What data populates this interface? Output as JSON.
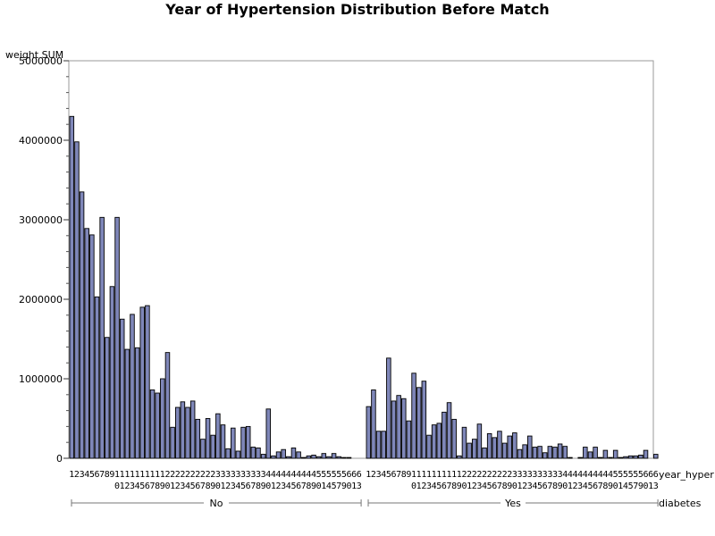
{
  "chart_data": {
    "type": "bar",
    "title": "Year of Hypertension Distribution Before Match",
    "ylabel": "weight SUM",
    "xlabel_inner": "year_hyper",
    "xlabel_outer": "diabetes",
    "ylim": [
      0,
      5000000
    ],
    "y_ticks": [
      0,
      1000000,
      2000000,
      3000000,
      4000000,
      5000000
    ],
    "bar_color": "#7F87B9",
    "frame_color": "#9A9A9A",
    "groups": [
      {
        "name": "No",
        "categories": [
          1,
          2,
          3,
          4,
          5,
          6,
          7,
          8,
          9,
          10,
          11,
          12,
          13,
          14,
          15,
          16,
          17,
          18,
          19,
          20,
          21,
          22,
          23,
          24,
          25,
          26,
          27,
          28,
          29,
          30,
          31,
          32,
          33,
          34,
          35,
          36,
          37,
          38,
          39,
          40,
          41,
          42,
          43,
          44,
          45,
          46,
          47,
          48,
          49,
          50,
          51,
          54,
          55,
          57,
          59,
          60,
          61,
          63
        ],
        "values": [
          4300000,
          3980000,
          3350000,
          2890000,
          2810000,
          2030000,
          3030000,
          1520000,
          2160000,
          3030000,
          1750000,
          1370000,
          1810000,
          1390000,
          1900000,
          1920000,
          860000,
          820000,
          1000000,
          1330000,
          390000,
          640000,
          710000,
          640000,
          720000,
          490000,
          240000,
          500000,
          290000,
          560000,
          420000,
          120000,
          380000,
          90000,
          390000,
          400000,
          140000,
          130000,
          50000,
          620000,
          30000,
          80000,
          110000,
          20000,
          130000,
          80000,
          10000,
          30000,
          40000,
          20000,
          60000,
          20000,
          60000,
          20000,
          10000,
          10000,
          0,
          0
        ]
      },
      {
        "name": "Yes",
        "categories": [
          1,
          2,
          3,
          4,
          5,
          6,
          7,
          8,
          9,
          10,
          11,
          12,
          13,
          14,
          15,
          16,
          17,
          18,
          19,
          20,
          21,
          22,
          23,
          24,
          25,
          26,
          27,
          28,
          29,
          30,
          31,
          32,
          33,
          34,
          35,
          36,
          37,
          38,
          39,
          40,
          41,
          42,
          43,
          44,
          45,
          46,
          47,
          48,
          49,
          50,
          51,
          54,
          55,
          57,
          59,
          60,
          61,
          63
        ],
        "values": [
          650000,
          860000,
          340000,
          340000,
          1260000,
          720000,
          790000,
          750000,
          470000,
          1070000,
          890000,
          970000,
          290000,
          420000,
          440000,
          580000,
          700000,
          490000,
          30000,
          390000,
          190000,
          240000,
          430000,
          130000,
          310000,
          260000,
          340000,
          190000,
          280000,
          320000,
          110000,
          170000,
          280000,
          140000,
          150000,
          70000,
          150000,
          140000,
          180000,
          150000,
          10000,
          0,
          10000,
          140000,
          80000,
          140000,
          10000,
          100000,
          10000,
          100000,
          10000,
          20000,
          30000,
          30000,
          40000,
          100000,
          0,
          50000
        ]
      }
    ]
  }
}
